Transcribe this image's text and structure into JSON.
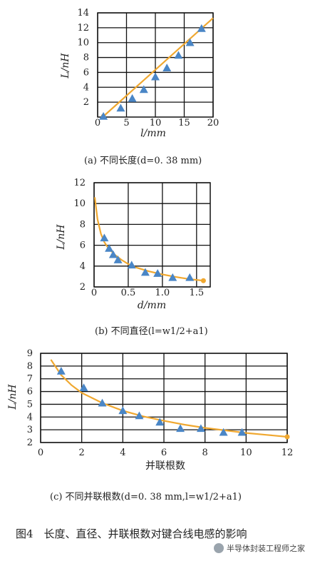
{
  "chart_data": [
    {
      "type": "scatter",
      "xlabel": "l/mm",
      "ylabel": "L/nH",
      "xlim": [
        0,
        20
      ],
      "ylim": [
        0,
        14
      ],
      "xticks": [
        "0",
        "5",
        "10",
        "15",
        "20"
      ],
      "yticks": [
        "2",
        "4",
        "6",
        "8",
        "10",
        "12",
        "14"
      ],
      "caption": "(a) 不同长度(d=0. 38 mm)",
      "grid": true,
      "points": [
        [
          1,
          0.1
        ],
        [
          4,
          1.2
        ],
        [
          6,
          2.5
        ],
        [
          8,
          3.7
        ],
        [
          10,
          5.4
        ],
        [
          12,
          6.6
        ],
        [
          14,
          8.3
        ],
        [
          16,
          10.0
        ],
        [
          18,
          11.9
        ]
      ],
      "fit": [
        [
          1,
          0.1
        ],
        [
          20,
          13.3
        ]
      ],
      "colors": {
        "points": "#4a86c6",
        "fit": "#f0a830"
      }
    },
    {
      "type": "scatter",
      "xlabel": "d/mm",
      "ylabel": "L/nH",
      "xlim": [
        0,
        1.7
      ],
      "ylim": [
        2,
        12
      ],
      "xticks": [
        "0",
        "0.5",
        "1.0",
        "1.5"
      ],
      "yticks": [
        "2",
        "4",
        "6",
        "8",
        "10",
        "12"
      ],
      "caption": "(b) 不同直径(l=w1/2+a1)",
      "grid": true,
      "points": [
        [
          0.15,
          6.7
        ],
        [
          0.22,
          5.7
        ],
        [
          0.28,
          5.1
        ],
        [
          0.35,
          4.6
        ],
        [
          0.55,
          4.1
        ],
        [
          0.75,
          3.4
        ],
        [
          0.93,
          3.3
        ],
        [
          1.15,
          2.9
        ],
        [
          1.4,
          2.9
        ]
      ],
      "fit": [
        [
          0.01,
          10.6
        ],
        [
          0.05,
          8.5
        ],
        [
          0.1,
          7.1
        ],
        [
          0.15,
          6.3
        ],
        [
          0.2,
          5.8
        ],
        [
          0.3,
          5.1
        ],
        [
          0.4,
          4.6
        ],
        [
          0.5,
          4.2
        ],
        [
          0.6,
          3.9
        ],
        [
          0.8,
          3.5
        ],
        [
          1.0,
          3.2
        ],
        [
          1.2,
          2.95
        ],
        [
          1.4,
          2.75
        ],
        [
          1.6,
          2.6
        ]
      ],
      "colors": {
        "points": "#4a86c6",
        "fit": "#f0a830"
      }
    },
    {
      "type": "scatter",
      "xlabel": "并联根数",
      "ylabel": "L/nH",
      "xlim": [
        0,
        12
      ],
      "ylim": [
        2,
        9
      ],
      "xticks": [
        "0",
        "2",
        "4",
        "6",
        "8",
        "10",
        "12"
      ],
      "yticks": [
        "2",
        "3",
        "4",
        "5",
        "6",
        "7",
        "8",
        "9"
      ],
      "caption": "(c) 不同并联根数(d=0. 38 mm,l=w1/2+a1)",
      "grid": true,
      "points": [
        [
          1,
          7.6
        ],
        [
          2.1,
          6.3
        ],
        [
          3,
          5.1
        ],
        [
          4,
          4.5
        ],
        [
          4.8,
          4.1
        ],
        [
          5.8,
          3.6
        ],
        [
          6.8,
          3.1
        ],
        [
          7.8,
          3.1
        ],
        [
          8.9,
          2.8
        ],
        [
          9.8,
          2.8
        ]
      ],
      "fit": [
        [
          0.5,
          8.5
        ],
        [
          1,
          7.3
        ],
        [
          1.5,
          6.5
        ],
        [
          2,
          5.9
        ],
        [
          2.5,
          5.5
        ],
        [
          3,
          5.1
        ],
        [
          4,
          4.5
        ],
        [
          5,
          4.05
        ],
        [
          6,
          3.7
        ],
        [
          7,
          3.4
        ],
        [
          8,
          3.15
        ],
        [
          9,
          2.95
        ],
        [
          10,
          2.75
        ],
        [
          11,
          2.6
        ],
        [
          12,
          2.45
        ]
      ],
      "colors": {
        "points": "#4a86c6",
        "fit": "#f0a830"
      }
    }
  ],
  "figure_title": "图4　长度、直径、并联根数对键合线电感的影响",
  "watermark": "半导体封装工程师之家"
}
